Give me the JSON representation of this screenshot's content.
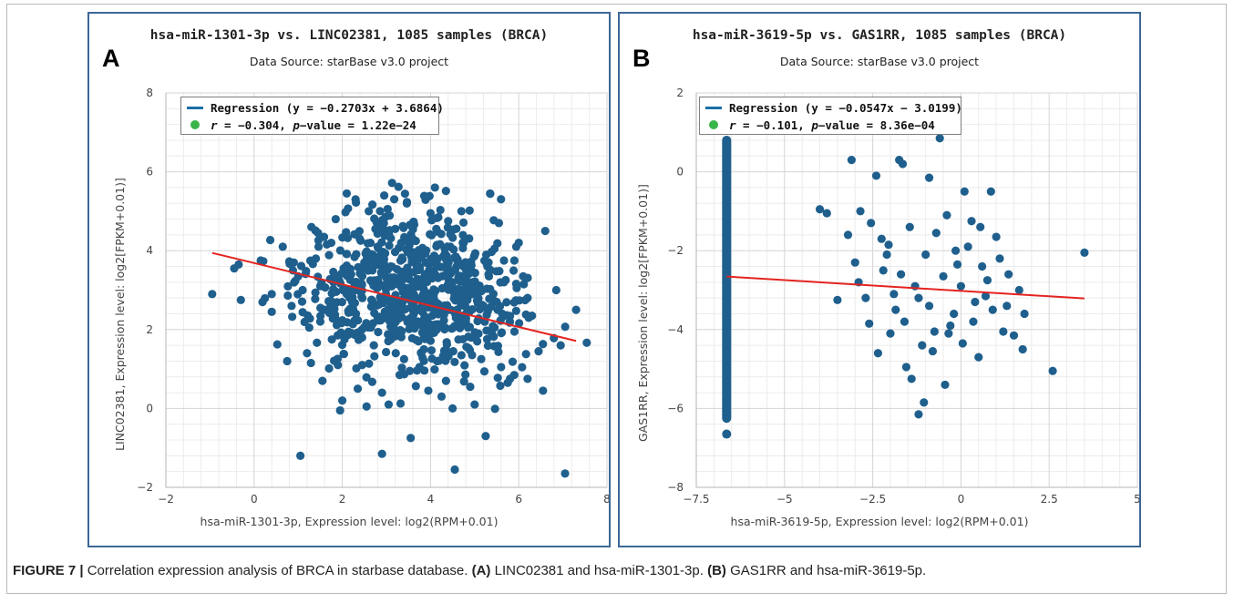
{
  "caption": {
    "label": "FIGURE 7 |",
    "text_1": " Correlation expression analysis of BRCA in starbase database. ",
    "tag_a": "(A)",
    "text_2": " LINC02381 and hsa-miR-1301-3p. ",
    "tag_b": "(B)",
    "text_3": " GAS1RR and hsa-miR-3619-5p."
  },
  "colors": {
    "point": "#1f5f8d",
    "regression": "#e32420",
    "legend_line": "#1a6fa6",
    "legend_dot": "#39b54a",
    "panel_border": "#3d6796"
  },
  "chart_data": [
    {
      "panel_letter": "A",
      "type": "scatter",
      "title": "hsa-miR-1301-3p vs. LINC02381, 1085 samples (BRCA)",
      "subtitle": "Data Source: starBase v3.0 project",
      "xlabel": "hsa-miR-1301-3p, Expression level: log2(RPM+0.01)",
      "ylabel": "LINC02381, Expression level: log2[FPKM+0.01)]",
      "xlim": [
        -2,
        8
      ],
      "ylim": [
        -2,
        8
      ],
      "xticks": [
        -2,
        0,
        2,
        4,
        6,
        8
      ],
      "yticks": [
        -2,
        0,
        2,
        4,
        6,
        8
      ],
      "grid": true,
      "legend": {
        "position": "top-left",
        "regression_label": "Regression (y = −0.2703x + 3.6864)",
        "stat_prefix": "r",
        "stat_value": " = −0.304, ",
        "p_label": "p",
        "p_value": "−value = 1.22e−24"
      },
      "regression": {
        "slope": -0.2703,
        "intercept": 3.6864,
        "x_range": [
          -0.95,
          7.3
        ]
      },
      "points": [
        [
          -0.95,
          2.9
        ],
        [
          -0.45,
          3.55
        ],
        [
          -0.3,
          2.75
        ],
        [
          -0.35,
          3.65
        ],
        [
          0.15,
          3.75
        ],
        [
          0.4,
          2.9
        ],
        [
          0.75,
          1.2
        ],
        [
          0.65,
          4.1
        ],
        [
          1.05,
          -1.2
        ],
        [
          1.0,
          3.35
        ],
        [
          1.2,
          1.4
        ],
        [
          1.3,
          4.6
        ],
        [
          1.45,
          4.45
        ],
        [
          1.5,
          3.1
        ],
        [
          1.8,
          3.2
        ],
        [
          1.85,
          4.8
        ],
        [
          1.9,
          1.1
        ],
        [
          1.75,
          4.2
        ],
        [
          2.0,
          0.2
        ],
        [
          2.1,
          5.45
        ],
        [
          2.3,
          5.3
        ],
        [
          2.35,
          0.5
        ],
        [
          2.6,
          5.0
        ],
        [
          2.9,
          -1.15
        ],
        [
          2.9,
          0.4
        ],
        [
          2.75,
          4.55
        ],
        [
          2.95,
          5.4
        ],
        [
          3.2,
          4.55
        ],
        [
          3.3,
          0.85
        ],
        [
          3.55,
          -0.75
        ],
        [
          3.6,
          2.55
        ],
        [
          3.85,
          1.5
        ],
        [
          4.0,
          4.95
        ],
        [
          4.1,
          5.6
        ],
        [
          4.25,
          0.3
        ],
        [
          4.4,
          4.75
        ],
        [
          4.55,
          -1.55
        ],
        [
          4.5,
          0.0
        ],
        [
          4.7,
          5.0
        ],
        [
          4.9,
          0.55
        ],
        [
          5.05,
          1.9
        ],
        [
          5.25,
          -0.7
        ],
        [
          5.35,
          5.45
        ],
        [
          5.55,
          4.7
        ],
        [
          5.6,
          1.05
        ],
        [
          5.75,
          0.65
        ],
        [
          6.0,
          4.2
        ],
        [
          6.1,
          3.35
        ],
        [
          6.2,
          0.75
        ],
        [
          6.45,
          1.45
        ],
        [
          6.55,
          0.45
        ],
        [
          6.6,
          4.5
        ],
        [
          6.85,
          3.0
        ],
        [
          7.05,
          -1.65
        ],
        [
          7.3,
          2.5
        ],
        [
          6.95,
          1.6
        ],
        [
          5.9,
          3.75
        ],
        [
          6.3,
          2.35
        ],
        [
          0.4,
          2.45
        ],
        [
          0.85,
          2.6
        ],
        [
          1.25,
          2.05
        ],
        [
          1.6,
          2.5
        ],
        [
          2.05,
          1.75
        ],
        [
          2.45,
          1.1
        ],
        [
          2.65,
          2.05
        ],
        [
          3.1,
          1.75
        ],
        [
          3.4,
          1.25
        ],
        [
          3.75,
          1.05
        ],
        [
          4.15,
          1.2
        ],
        [
          4.35,
          0.7
        ],
        [
          4.7,
          1.35
        ],
        [
          5.15,
          1.25
        ],
        [
          5.45,
          2.05
        ],
        [
          2.55,
          0.05
        ],
        [
          3.05,
          0.1
        ],
        [
          3.95,
          0.45
        ],
        [
          1.55,
          0.7
        ],
        [
          1.95,
          -0.05
        ],
        [
          5.0,
          0.1
        ],
        [
          2.1,
          2.9
        ],
        [
          2.5,
          3.7
        ],
        [
          3.0,
          3.1
        ],
        [
          3.5,
          3.4
        ],
        [
          4.0,
          2.8
        ],
        [
          4.5,
          3.2
        ],
        [
          5.0,
          3.0
        ],
        [
          5.5,
          2.7
        ],
        [
          2.7,
          2.6
        ],
        [
          3.3,
          2.3
        ],
        [
          3.8,
          3.9
        ],
        [
          4.2,
          3.6
        ],
        [
          4.8,
          2.2
        ],
        [
          5.2,
          2.6
        ],
        [
          1.4,
          3.8
        ],
        [
          1.1,
          3.0
        ],
        [
          0.9,
          3.7
        ],
        [
          5.8,
          2.2
        ],
        [
          6.2,
          2.8
        ],
        [
          3.6,
          4.3
        ],
        [
          2.8,
          4.1
        ],
        [
          2.2,
          3.4
        ],
        [
          4.4,
          2.5
        ],
        [
          3.9,
          2.0
        ],
        [
          3.1,
          3.6
        ]
      ]
    },
    {
      "panel_letter": "B",
      "type": "scatter",
      "title": "hsa-miR-3619-5p vs. GAS1RR, 1085 samples (BRCA)",
      "subtitle": "Data Source: starBase v3.0 project",
      "xlabel": "hsa-miR-3619-5p, Expression level: log2(RPM+0.01)",
      "ylabel": "GAS1RR, Expression level: log2[FPKM+0.01)]",
      "xlim": [
        -7.5,
        5
      ],
      "ylim": [
        -8,
        2
      ],
      "xticks": [
        -7.5,
        -5,
        -2.5,
        0,
        2.5,
        5
      ],
      "yticks": [
        -8,
        -6,
        -4,
        -2,
        0,
        2
      ],
      "grid": true,
      "legend": {
        "position": "top-left",
        "regression_label": "Regression (y = −0.0547x − 3.0199)",
        "stat_prefix": "r",
        "stat_value": " = −0.101, ",
        "p_label": "p",
        "p_value": "−value = 8.36e−04"
      },
      "regression": {
        "slope": -0.0547,
        "intercept": -3.0199,
        "x_range": [
          -6.64,
          3.5
        ]
      },
      "column": {
        "x": -6.64,
        "y_range": [
          -6.25,
          0.8
        ],
        "outlier": -6.65
      },
      "points": [
        [
          -4.0,
          -0.95
        ],
        [
          -3.8,
          -1.05
        ],
        [
          -3.5,
          -3.25
        ],
        [
          -3.1,
          0.3
        ],
        [
          -2.85,
          -1.0
        ],
        [
          -2.6,
          -3.85
        ],
        [
          -2.35,
          -4.6
        ],
        [
          -2.2,
          -2.5
        ],
        [
          -2.05,
          -1.85
        ],
        [
          -1.85,
          -3.5
        ],
        [
          -1.75,
          0.3
        ],
        [
          -1.65,
          0.2
        ],
        [
          -1.55,
          -4.95
        ],
        [
          -1.4,
          -5.25
        ],
        [
          -1.2,
          -6.15
        ],
        [
          -1.05,
          -5.85
        ],
        [
          -0.9,
          -0.15
        ],
        [
          -0.75,
          -4.05
        ],
        [
          -0.6,
          0.85
        ],
        [
          -0.45,
          -5.4
        ],
        [
          -0.3,
          -3.9
        ],
        [
          -0.1,
          -2.35
        ],
        [
          0.1,
          -0.5
        ],
        [
          0.3,
          -1.25
        ],
        [
          0.5,
          -4.7
        ],
        [
          0.7,
          -3.15
        ],
        [
          0.85,
          -0.5
        ],
        [
          1.0,
          -1.65
        ],
        [
          1.2,
          -4.05
        ],
        [
          1.35,
          -2.6
        ],
        [
          1.5,
          -4.15
        ],
        [
          1.65,
          -3.0
        ],
        [
          1.8,
          -3.6
        ],
        [
          1.75,
          -4.5
        ],
        [
          2.6,
          -5.05
        ],
        [
          3.5,
          -2.05
        ],
        [
          -2.4,
          -0.1
        ],
        [
          -2.55,
          -1.3
        ],
        [
          -2.0,
          -4.1
        ],
        [
          -1.2,
          -3.2
        ],
        [
          -1.0,
          -2.1
        ],
        [
          -0.8,
          -4.55
        ],
        [
          -0.5,
          -2.65
        ],
        [
          -0.2,
          -3.6
        ],
        [
          0.0,
          -2.9
        ],
        [
          0.2,
          -1.9
        ],
        [
          0.4,
          -3.3
        ],
        [
          0.6,
          -2.4
        ],
        [
          0.9,
          -3.5
        ],
        [
          1.1,
          -2.2
        ],
        [
          -3.2,
          -1.6
        ],
        [
          -2.9,
          -2.8
        ],
        [
          -2.1,
          -2.1
        ],
        [
          -1.7,
          -2.6
        ],
        [
          -1.45,
          -1.4
        ],
        [
          -1.1,
          -4.4
        ],
        [
          -0.7,
          -1.55
        ],
        [
          -0.35,
          -4.1
        ],
        [
          0.05,
          -4.35
        ],
        [
          0.35,
          -3.8
        ],
        [
          0.75,
          -2.75
        ],
        [
          1.3,
          -3.4
        ],
        [
          -2.7,
          -3.2
        ],
        [
          -1.9,
          -3.1
        ],
        [
          -1.3,
          -2.9
        ],
        [
          -0.9,
          -3.4
        ],
        [
          -0.4,
          -1.1
        ],
        [
          -3.0,
          -2.3
        ],
        [
          -2.25,
          -1.7
        ],
        [
          -1.6,
          -3.8
        ],
        [
          -0.15,
          -2.0
        ],
        [
          0.55,
          -1.4
        ]
      ]
    }
  ]
}
